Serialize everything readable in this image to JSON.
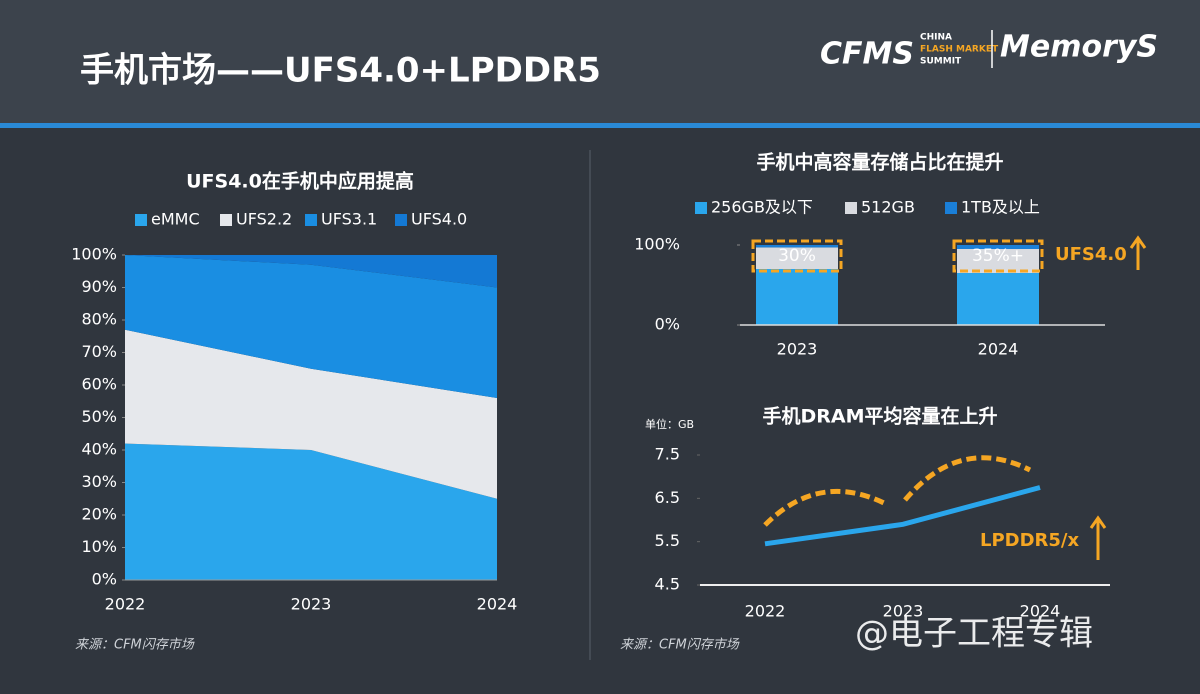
{
  "header": {
    "title": "手机市场——UFS4.0+LPDDR5",
    "logo": "CFMS",
    "logo_subtitle": [
      "CHINA",
      "FLASH MARKET",
      "SUMMIT"
    ],
    "brand": "MemoryS"
  },
  "chart_data": [
    {
      "type": "area",
      "title": "UFS4.0在手机中应用提高",
      "categories": [
        "2022",
        "2023",
        "2024"
      ],
      "stacked": true,
      "series": [
        {
          "name": "eMMC",
          "color": "#2aa6ec",
          "values": [
            42,
            40,
            25
          ]
        },
        {
          "name": "UFS2.2",
          "color": "#e6e8ec",
          "values": [
            35,
            25,
            31
          ]
        },
        {
          "name": "UFS3.1",
          "color": "#1a8ee2",
          "values": [
            23,
            32,
            34
          ]
        },
        {
          "name": "UFS4.0",
          "color": "#1479d4",
          "values": [
            0,
            3,
            10
          ]
        }
      ],
      "ylim": [
        0,
        100
      ],
      "yticks": [
        {
          "value": 0,
          "label": "0%"
        },
        {
          "value": 10,
          "label": "10%"
        },
        {
          "value": 20,
          "label": "20%"
        },
        {
          "value": 30,
          "label": "30%"
        },
        {
          "value": 40,
          "label": "40%"
        },
        {
          "value": 50,
          "label": "50%"
        },
        {
          "value": 60,
          "label": "60%"
        },
        {
          "value": 70,
          "label": "70%"
        },
        {
          "value": 80,
          "label": "80%"
        },
        {
          "value": 90,
          "label": "90%"
        },
        {
          "value": 100,
          "label": "100%"
        }
      ],
      "source": "来源：CFM闪存市场"
    },
    {
      "type": "bar",
      "title": "手机中高容量存储占比在提升",
      "categories": [
        "2023",
        "2024"
      ],
      "stacked": true,
      "series": [
        {
          "name": "256GB及以下",
          "color": "#2aa6ec",
          "values": [
            70,
            65
          ]
        },
        {
          "name": "512GB",
          "color": "#d9dbe0",
          "values": [
            27,
            30
          ]
        },
        {
          "name": "1TB及以上",
          "color": "#1a7fd8",
          "values": [
            3,
            5
          ]
        }
      ],
      "ylim": [
        0,
        100
      ],
      "yticks": [
        {
          "value": 0,
          "label": "0%"
        },
        {
          "value": 100,
          "label": "100%"
        }
      ],
      "annotations": [
        "30%",
        "35%+",
        "UFS4.0"
      ]
    },
    {
      "type": "line",
      "title": "手机DRAM平均容量在上升",
      "unit": "单位：GB",
      "categories": [
        "2022",
        "2023",
        "2024"
      ],
      "series": [
        {
          "name": "DRAM",
          "color": "#2aa6ec",
          "values": [
            5.45,
            5.9,
            6.75
          ]
        }
      ],
      "ylim": [
        4.5,
        7.5
      ],
      "yticks": [
        4.5,
        5.5,
        6.5,
        7.5
      ],
      "annotation": "LPDDR5/x",
      "source": "来源：CFM闪存市场"
    }
  ],
  "watermark": "@电子工程专辑"
}
